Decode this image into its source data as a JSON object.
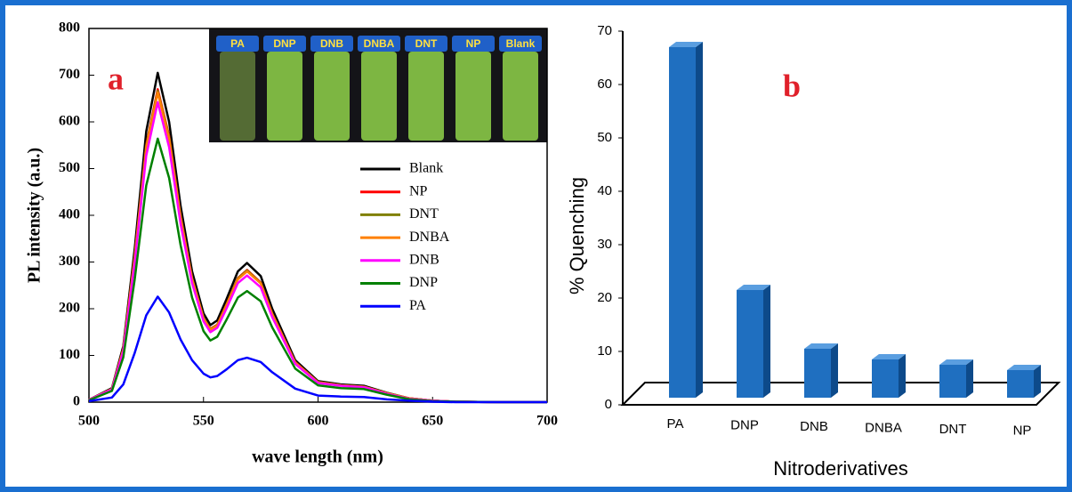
{
  "chart_data": [
    {
      "type": "line",
      "panel_label": "a",
      "x_label": "wave length (nm)",
      "y_label": "PL intensity (a.u.)",
      "inset_labels": [
        "PA",
        "DNP",
        "DNB",
        "DNBA",
        "DNT",
        "NP",
        "Blank"
      ],
      "x": [
        500,
        510,
        515,
        520,
        525,
        530,
        535,
        540,
        545,
        550,
        553,
        556,
        560,
        565,
        569,
        575,
        580,
        590,
        600,
        610,
        620,
        630,
        640,
        650,
        660,
        680,
        700
      ],
      "xlim": [
        500,
        700
      ],
      "xticks": [
        500,
        550,
        600,
        650,
        700
      ],
      "ylim": [
        0,
        800
      ],
      "yticks": [
        0,
        100,
        200,
        300,
        400,
        500,
        600,
        700,
        800
      ],
      "series": [
        {
          "name": "Blank",
          "color": "#000000",
          "values": [
            5,
            30,
            120,
            330,
            580,
            705,
            600,
            420,
            280,
            190,
            165,
            175,
            220,
            280,
            298,
            270,
            200,
            90,
            45,
            38,
            35,
            20,
            8,
            3,
            1,
            0,
            0
          ]
        },
        {
          "name": "NP",
          "color": "#ff0000",
          "values": [
            5,
            28,
            114,
            314,
            551,
            670,
            570,
            399,
            266,
            180,
            157,
            166,
            209,
            266,
            283,
            256,
            190,
            86,
            43,
            36,
            33,
            19,
            8,
            3,
            1,
            0,
            0
          ]
        },
        {
          "name": "DNT",
          "color": "#808000",
          "values": [
            5,
            28,
            113,
            312,
            548,
            666,
            567,
            397,
            265,
            180,
            156,
            165,
            208,
            265,
            282,
            255,
            189,
            85,
            43,
            36,
            33,
            19,
            8,
            3,
            1,
            0,
            0
          ]
        },
        {
          "name": "DNBA",
          "color": "#ff8000",
          "values": [
            5,
            28,
            113,
            310,
            545,
            663,
            564,
            395,
            263,
            179,
            155,
            164,
            207,
            263,
            280,
            254,
            188,
            85,
            42,
            36,
            33,
            19,
            8,
            3,
            1,
            0,
            0
          ]
        },
        {
          "name": "DNB",
          "color": "#ff00ff",
          "values": [
            5,
            27,
            109,
            300,
            528,
            642,
            546,
            382,
            255,
            173,
            150,
            159,
            200,
            255,
            271,
            246,
            182,
            82,
            41,
            35,
            32,
            18,
            7,
            3,
            1,
            0,
            0
          ]
        },
        {
          "name": "DNP",
          "color": "#008000",
          "values": [
            4,
            24,
            96,
            264,
            464,
            564,
            480,
            336,
            224,
            152,
            132,
            140,
            176,
            224,
            238,
            216,
            160,
            72,
            36,
            30,
            28,
            16,
            6,
            2,
            1,
            0,
            0
          ]
        },
        {
          "name": "PA",
          "color": "#0000ff",
          "values": [
            2,
            10,
            38,
            106,
            186,
            226,
            192,
            134,
            90,
            61,
            53,
            56,
            70,
            90,
            95,
            86,
            64,
            29,
            14,
            12,
            11,
            6,
            3,
            1,
            0,
            0,
            0
          ]
        }
      ]
    },
    {
      "type": "bar3d",
      "panel_label": "b",
      "x_label": "Nitroderivatives",
      "y_label": "% Quenching",
      "categories": [
        "PA",
        "DNP",
        "DNB",
        "DNBA",
        "DNT",
        "NP"
      ],
      "values": [
        67,
        21.5,
        10.5,
        8.5,
        7.5,
        6.5
      ],
      "color": "#1f6fc0",
      "ylim": [
        0,
        70
      ],
      "yticks": [
        0,
        10,
        20,
        30,
        40,
        50,
        60,
        70
      ]
    }
  ]
}
